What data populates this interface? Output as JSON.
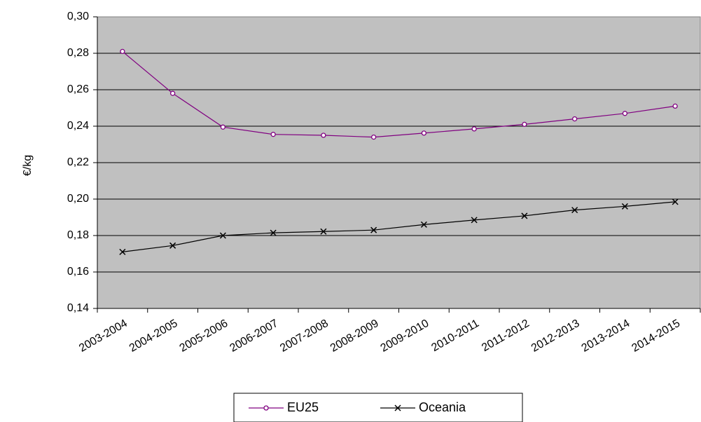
{
  "chart_data": {
    "type": "line",
    "title": "",
    "xlabel": "",
    "ylabel": "€/kg",
    "ylim": [
      0.14,
      0.3
    ],
    "yticks": [
      "0,14",
      "0,16",
      "0,18",
      "0,20",
      "0,22",
      "0,24",
      "0,26",
      "0,28",
      "0,30"
    ],
    "categories": [
      "2003-2004",
      "2004-2005",
      "2005-2006",
      "2006-2007",
      "2007-2008",
      "2008-2009",
      "2009-2010",
      "2010-2011",
      "2011-2012",
      "2012-2013",
      "2013-2014",
      "2014-2015"
    ],
    "series": [
      {
        "name": "EU25",
        "color": "#800080",
        "marker": "circle",
        "values": [
          0.281,
          0.258,
          0.2395,
          0.2355,
          0.235,
          0.234,
          0.2362,
          0.2385,
          0.241,
          0.244,
          0.247,
          0.251
        ]
      },
      {
        "name": "Oceania",
        "color": "#000000",
        "marker": "x",
        "values": [
          0.171,
          0.1745,
          0.18,
          0.1815,
          0.1822,
          0.183,
          0.186,
          0.1885,
          0.1908,
          0.194,
          0.196,
          0.1985
        ]
      }
    ],
    "grid": true,
    "plot_background": "#c0c0c0",
    "legend": "bottom"
  }
}
